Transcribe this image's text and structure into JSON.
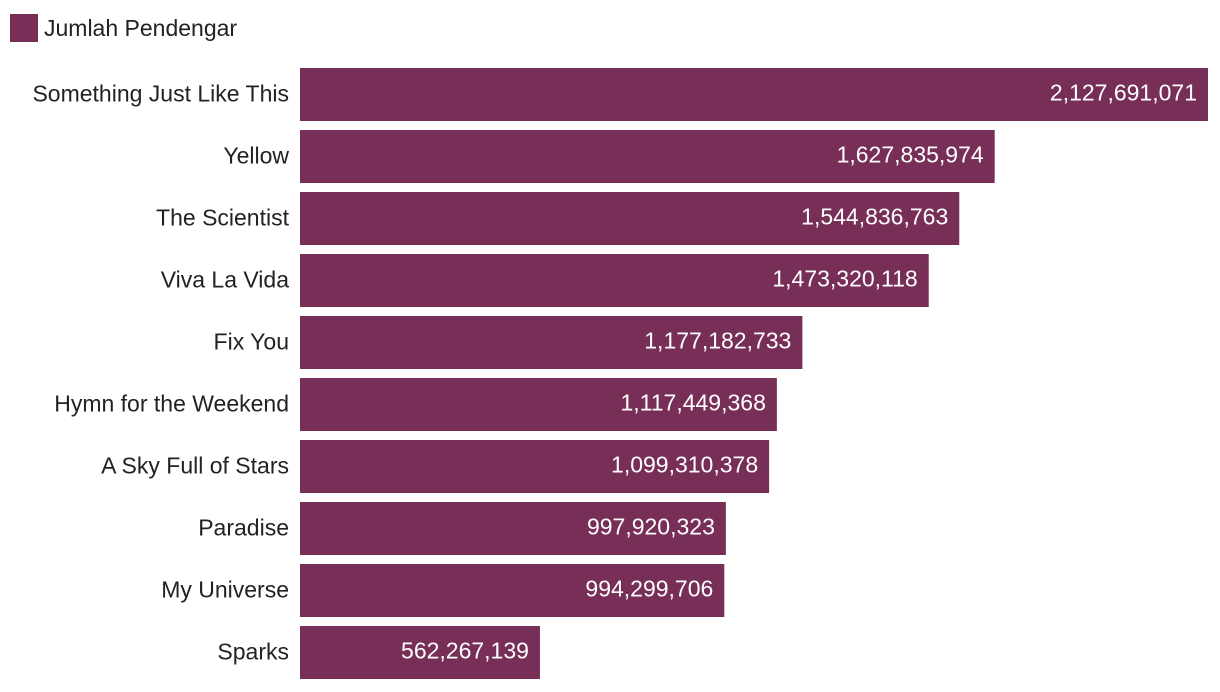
{
  "chart_data": {
    "type": "bar",
    "orientation": "horizontal",
    "title": "",
    "xlabel": "",
    "ylabel": "",
    "legend": {
      "position": "top-left"
    },
    "grid": false,
    "xlim": [
      0,
      2127691071
    ],
    "categories": [
      "Something Just Like This",
      "Yellow",
      "The Scientist",
      "Viva La Vida",
      "Fix You",
      "Hymn for the Weekend",
      "A Sky Full of Stars",
      "Paradise",
      "My Universe",
      "Sparks"
    ],
    "series": [
      {
        "name": "Jumlah Pendengar",
        "color": "#782f57",
        "values": [
          2127691071,
          1627835974,
          1544836763,
          1473320118,
          1177182733,
          1117449368,
          1099310378,
          997920323,
          994299706,
          562267139
        ],
        "labels": [
          "2,127,691,071",
          "1,627,835,974",
          "1,544,836,763",
          "1,473,320,118",
          "1,177,182,733",
          "1,117,449,368",
          "1,099,310,378",
          "997,920,323",
          "994,299,706",
          "562,267,139"
        ]
      }
    ]
  }
}
